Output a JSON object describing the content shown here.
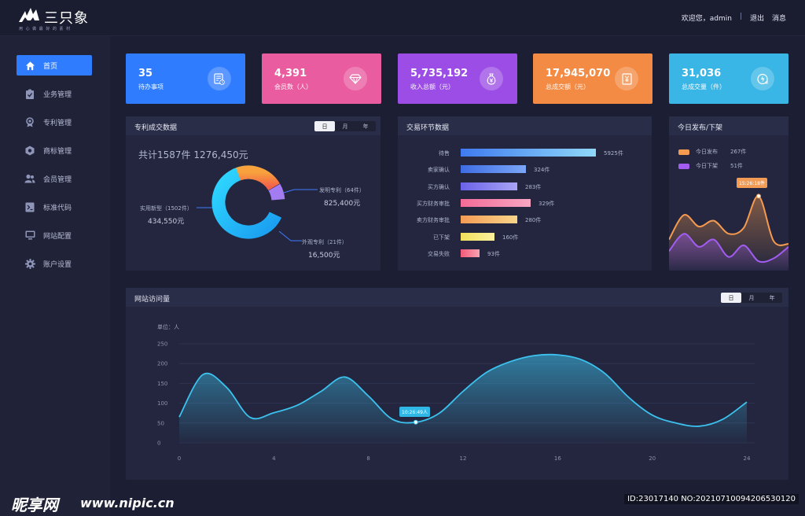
{
  "app": {
    "logo_text": "三只象",
    "slogan": "用 心 做 最 好 的 素 材"
  },
  "topnav": {
    "welcome": "欢迎您，admin",
    "separator": "|",
    "logout": "退出",
    "messages": "消息"
  },
  "sidebar": {
    "items": [
      {
        "label": "首页",
        "icon": "home-icon"
      },
      {
        "label": "业务管理",
        "icon": "clipboard-icon"
      },
      {
        "label": "专利管理",
        "icon": "award-icon"
      },
      {
        "label": "商标管理",
        "icon": "trademark-icon"
      },
      {
        "label": "会员管理",
        "icon": "users-icon"
      },
      {
        "label": "标准代码",
        "icon": "code-icon"
      },
      {
        "label": "网站配置",
        "icon": "monitor-icon"
      },
      {
        "label": "账户设置",
        "icon": "gear-icon"
      }
    ]
  },
  "stats": [
    {
      "value": "35",
      "label": "待办事项",
      "color": "#2f7cff",
      "icon": "todo-icon"
    },
    {
      "value": "4,391",
      "label": "会员数（人）",
      "color": "#ea5ca0",
      "icon": "diamond-icon"
    },
    {
      "value": "5,735,192",
      "label": "收入总额（元）",
      "color": "#9b4de6",
      "icon": "money-bag-icon"
    },
    {
      "value": "17,945,070",
      "label": "总成交额（元）",
      "color": "#f48b45",
      "icon": "invoice-icon"
    },
    {
      "value": "31,036",
      "label": "总成交量（件）",
      "color": "#3ab6e6",
      "icon": "lightning-chart-icon"
    }
  ],
  "panel_patent": {
    "title": "专利成交数据",
    "tabs": [
      "日",
      "月",
      "年"
    ],
    "total": "共计1587件  1276,450元",
    "annotations": {
      "a": {
        "label": "发明专利（64件）",
        "value": "825,400元"
      },
      "b": {
        "label": "实用新型（1502件）",
        "value": "434,550元"
      },
      "c": {
        "label": "外观专利（21件）",
        "value": "16,500元"
      }
    }
  },
  "panel_trade": {
    "title": "交易环节数据"
  },
  "panel_today": {
    "title": "今日发布/下架",
    "tooltip": "15:26:18件"
  },
  "panel_visits": {
    "title": "网站访问量",
    "tabs": [
      "日",
      "月",
      "年"
    ],
    "unit": "单位：人",
    "tooltip": "10:26:49人"
  },
  "watermark": {
    "logo": "昵享网",
    "url": "www.nipic.cn",
    "id": "ID:23017140 NO:20210710094206530120"
  },
  "colors": {
    "donut_blue": "#1ec8ff",
    "donut_orange": "#f7853c",
    "donut_purple": "#a37cf2",
    "line_orange": "#f59a4f",
    "line_purple": "#a25cf2",
    "line_cyan": "#3cc2ee"
  },
  "chart_data": [
    {
      "type": "pie",
      "labels": [
        "实用新型（1502件）",
        "发明专利（64件）",
        "外观专利（21件）"
      ],
      "values": [
        71,
        22,
        7
      ]
    },
    {
      "type": "bar",
      "orientation": "horizontal",
      "categories": [
        "待售",
        "卖家确认",
        "买方确认",
        "买方财务审批",
        "卖方财务审批",
        "已下架",
        "交易失败"
      ],
      "values": [
        5925,
        324,
        283,
        329,
        280,
        160,
        93
      ],
      "value_labels": [
        "5925件",
        "324件",
        "283件",
        "329件",
        "280件",
        "160件",
        "93件"
      ],
      "bar_length_fraction": [
        1.0,
        0.48,
        0.42,
        0.52,
        0.42,
        0.25,
        0.14
      ],
      "bar_colors": [
        [
          "#3f7bf0",
          "#8fd8f8"
        ],
        [
          "#3e6de3",
          "#7ba6f8"
        ],
        [
          "#6a62e8",
          "#a9a4f6"
        ],
        [
          "#f26b97",
          "#f8a6c2"
        ],
        [
          "#f59b54",
          "#f8d58a"
        ],
        [
          "#f2e05c",
          "#faf19e"
        ],
        [
          "#f2597a",
          "#f7a3b0"
        ]
      ]
    },
    {
      "type": "area",
      "series": [
        {
          "name": "今日发布",
          "value_label": "267件",
          "color": "#f59a4f",
          "values": [
            0.32,
            0.66,
            0.5,
            0.58,
            0.4,
            0.48,
            0.92,
            0.3,
            0.26
          ]
        },
        {
          "name": "今日下架",
          "value_label": "51件",
          "color": "#a25cf2",
          "values": [
            0.16,
            0.4,
            0.22,
            0.32,
            0.08,
            0.24,
            0.02,
            0.06,
            0.22
          ]
        }
      ],
      "ylim": [
        0,
        1
      ]
    },
    {
      "type": "area",
      "title": "网站访问量",
      "ylabel": "单位：人",
      "x": [
        0,
        1,
        2,
        3,
        4,
        5,
        6,
        7,
        8,
        9,
        10,
        11,
        12,
        13,
        14,
        15,
        16,
        17,
        18,
        19,
        20,
        21,
        22,
        23,
        24
      ],
      "values": [
        65,
        172,
        140,
        64,
        76,
        95,
        130,
        166,
        118,
        60,
        52,
        75,
        130,
        178,
        205,
        220,
        222,
        210,
        175,
        115,
        70,
        50,
        42,
        60,
        103
      ],
      "xticks": [
        0,
        4,
        8,
        12,
        16,
        20,
        24
      ],
      "yticks": [
        0,
        50,
        100,
        150,
        200,
        250
      ],
      "ylim": [
        0,
        250
      ],
      "grid": true
    }
  ]
}
